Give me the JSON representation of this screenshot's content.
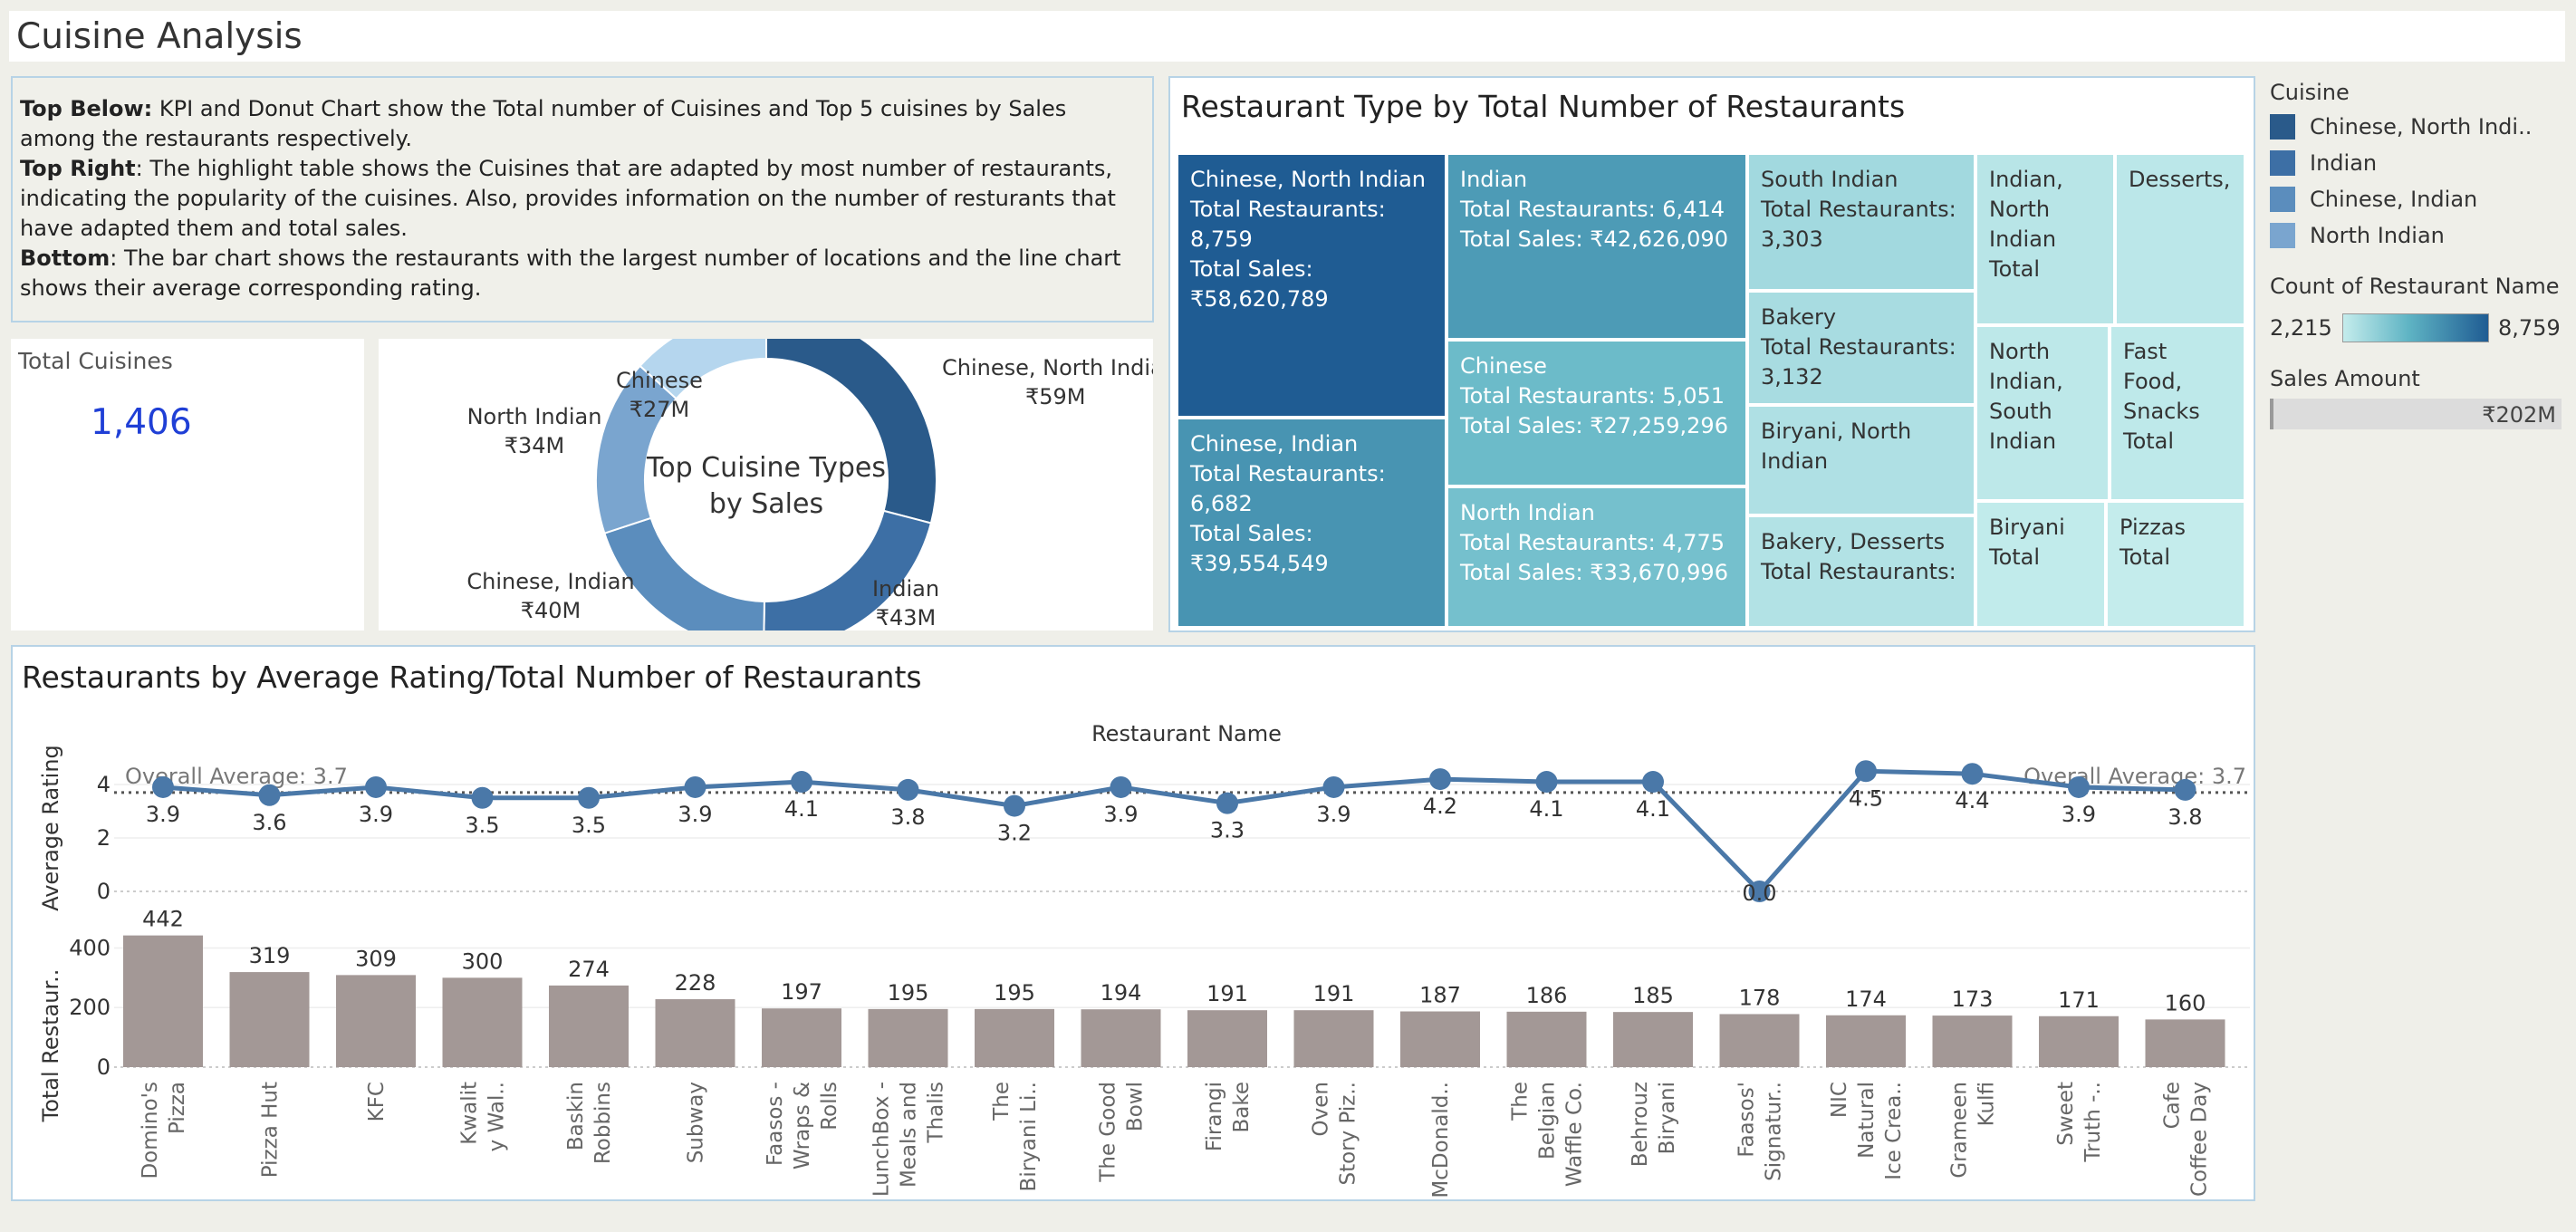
{
  "page_title": "Cuisine Analysis",
  "description": [
    {
      "bold": "Top Below:",
      "text": " KPI and Donut Chart show the Total number of Cuisines and Top 5 cuisines by Sales among the restaurants respectively."
    },
    {
      "bold": "Top Right",
      "text": ": The highlight table shows the Cuisines that are adapted by most number of restaurants, indicating the popularity of the cuisines. Also, provides information on the number of resturants that have adapted them and total sales."
    },
    {
      "bold": "Bottom",
      "text": ": The bar chart shows the restaurants with the largest number of locations and the line chart shows their average corresponding rating."
    }
  ],
  "kpi": {
    "label": "Total Cuisines",
    "value": "1,406"
  },
  "colors": {
    "dark": "#2a5a8a",
    "mid": "#3d6fa5",
    "light": "#5b8dbd",
    "lighter": "#7aa5cf",
    "pale": "#b5d6ee",
    "bar": "#a39896",
    "line": "#4a78a8"
  },
  "legend": {
    "cuisine_title": "Cuisine",
    "cuisine_items": [
      {
        "label": "Chinese, North Indi..",
        "color": "#2a5a8a"
      },
      {
        "label": "Indian",
        "color": "#3d6fa5"
      },
      {
        "label": "Chinese, Indian",
        "color": "#5b8dbd"
      },
      {
        "label": "North Indian",
        "color": "#7aa5cf"
      }
    ],
    "count_title": "Count of Restaurant Name",
    "count_min": "2,215",
    "count_max": "8,759",
    "sales_title": "Sales Amount",
    "sales_value": "₹202M"
  },
  "chart_data": [
    {
      "type": "pie",
      "title": "Top Cuisine Types by Sales",
      "slices": [
        {
          "label": "Chinese, North Indian",
          "value_label": "₹59M",
          "value": 59,
          "color": "#2a5a8a"
        },
        {
          "label": "Indian",
          "value_label": "₹43M",
          "value": 43,
          "color": "#3d6fa5"
        },
        {
          "label": "Chinese, Indian",
          "value_label": "₹40M",
          "value": 40,
          "color": "#5b8dbd"
        },
        {
          "label": "North Indian",
          "value_label": "₹34M",
          "value": 34,
          "color": "#7aa5cf"
        },
        {
          "label": "Chinese",
          "value_label": "₹27M",
          "value": 27,
          "color": "#b5d6ee"
        }
      ]
    },
    {
      "type": "heatmap",
      "title": "Restaurant Type by Total Number of Restaurants",
      "cells": [
        {
          "lines": [
            "Chinese, North Indian",
            "Total Restaurants:",
            "8,759",
            "Total Sales:",
            "₹58,620,789"
          ],
          "count": 8759
        },
        {
          "lines": [
            "Chinese, Indian",
            "Total Restaurants:",
            "6,682",
            "Total Sales:",
            "₹39,554,549"
          ],
          "count": 6682
        },
        {
          "lines": [
            "Indian",
            "Total Restaurants: 6,414",
            "Total Sales: ₹42,626,090"
          ],
          "count": 6414
        },
        {
          "lines": [
            "Chinese",
            "Total Restaurants: 5,051",
            "Total Sales: ₹27,259,296"
          ],
          "count": 5051
        },
        {
          "lines": [
            "North Indian",
            "Total Restaurants: 4,775",
            "Total Sales: ₹33,670,996"
          ],
          "count": 4775
        },
        {
          "lines": [
            "South Indian",
            "Total Restaurants:",
            "3,303"
          ],
          "count": 3303
        },
        {
          "lines": [
            "Bakery",
            "Total Restaurants:",
            "3,132"
          ],
          "count": 3132
        },
        {
          "lines": [
            "Biryani, North",
            "Indian"
          ],
          "count": 2900
        },
        {
          "lines": [
            "Bakery, Desserts",
            "Total Restaurants:"
          ],
          "count": 2800
        },
        {
          "lines": [
            "Indian,",
            "North",
            "Indian",
            "Total"
          ],
          "count": 2600
        },
        {
          "lines": [
            "Desserts,"
          ],
          "count": 2500
        },
        {
          "lines": [
            "North",
            "Indian,",
            "South",
            "Indian"
          ],
          "count": 2450
        },
        {
          "lines": [
            "Fast",
            "Food,",
            "Snacks",
            "Total"
          ],
          "count": 2400
        },
        {
          "lines": [
            "Biryani",
            "Total"
          ],
          "count": 2300
        },
        {
          "lines": [
            "Pizzas",
            "Total"
          ],
          "count": 2215
        }
      ]
    },
    {
      "type": "line",
      "title": "Restaurants by Average Rating/Total Number of Restaurants",
      "xlabel": "Restaurant Name",
      "ylabel": "Average Rating",
      "ylim": [
        0,
        4
      ],
      "yticks": [
        0,
        2,
        4
      ],
      "reference_label": "Overall Average: 3.7",
      "reference_value": 3.7,
      "categories": [
        "Domino's Pizza",
        "Pizza Hut",
        "KFC",
        "Kwality Walls",
        "Baskin Robbins",
        "Subway",
        "Faasos - Wraps & Rolls",
        "LunchBox - Meals and Thalis",
        "The Biryani Life",
        "The Good Bowl",
        "Firangi Bake",
        "Oven Story Pizza",
        "McDonald's",
        "The Belgian Waffle Co.",
        "Behrouz Biryani",
        "Faasos' Signature",
        "NIC Natural Ice Cream",
        "Grameen Kulfi",
        "Sweet Truth",
        "Cafe Coffee Day"
      ],
      "values": [
        3.9,
        3.6,
        3.9,
        3.5,
        3.5,
        3.9,
        4.1,
        3.8,
        3.2,
        3.9,
        3.3,
        3.9,
        4.2,
        4.1,
        4.1,
        0.0,
        4.5,
        4.4,
        3.9,
        3.8
      ],
      "value_labels": [
        "3.9",
        "3.6",
        "3.9",
        "3.5",
        "3.5",
        "3.9",
        "4.1",
        "3.8",
        "3.2",
        "3.9",
        "3.3",
        "3.9",
        "4.2",
        "4.1",
        "4.1",
        "0.0",
        "4.5",
        "4.4",
        "3.9",
        "3.8"
      ]
    },
    {
      "type": "bar",
      "ylabel": "Total Restaur..",
      "ylim": [
        0,
        450
      ],
      "yticks": [
        0,
        200,
        400
      ],
      "categories": [
        "Domino's Pizza",
        "Pizza Hut",
        "KFC",
        "Kwality Walls",
        "Baskin Robbins",
        "Subway",
        "Faasos - Wraps & Rolls",
        "LunchBox - Meals and Thalis",
        "The Biryani Life",
        "The Good Bowl",
        "Firangi Bake",
        "Oven Story Pizza",
        "McDonald's",
        "The Belgian Waffle Co.",
        "Behrouz Biryani",
        "Faasos' Signature",
        "NIC Natural Ice Cream",
        "Grameen Kulfi",
        "Sweet Truth",
        "Cafe Coffee Day"
      ],
      "tick_labels": [
        [
          "Domino's",
          "Pizza"
        ],
        [
          "Pizza Hut"
        ],
        [
          "KFC"
        ],
        [
          "Kwalit",
          "y Wal.."
        ],
        [
          "Baskin",
          "Robbins"
        ],
        [
          "Subway"
        ],
        [
          "Faasos -",
          "Wraps &",
          "Rolls"
        ],
        [
          "LunchBox -",
          "Meals and",
          "Thalis"
        ],
        [
          "The",
          "Biryani Li.."
        ],
        [
          "The Good",
          "Bowl"
        ],
        [
          "Firangi",
          "Bake"
        ],
        [
          "Oven",
          "Story Piz.."
        ],
        [
          "McDonald.."
        ],
        [
          "The",
          "Belgian",
          "Waffle Co."
        ],
        [
          "Behrouz",
          "Biryani"
        ],
        [
          "Faasos'",
          "Signatur.."
        ],
        [
          "NIC",
          "Natural",
          "Ice Crea.."
        ],
        [
          "Grameen",
          "Kulfi"
        ],
        [
          "Sweet",
          "Truth -.."
        ],
        [
          "Cafe",
          "Coffee Day"
        ]
      ],
      "values": [
        442,
        319,
        309,
        300,
        274,
        228,
        197,
        195,
        195,
        194,
        191,
        191,
        187,
        186,
        185,
        178,
        174,
        173,
        171,
        160
      ]
    }
  ]
}
